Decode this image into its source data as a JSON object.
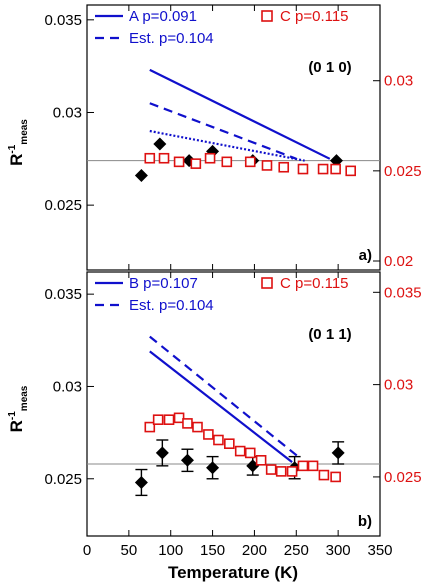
{
  "colors": {
    "blue": "#1010cc",
    "red": "#dd1111",
    "black": "#000000",
    "ref_line": "#888888"
  },
  "xaxis": {
    "label": "Temperature (K)",
    "ticks": [
      "0",
      "50",
      "100",
      "150",
      "200",
      "250",
      "300",
      "350"
    ],
    "tick_values": [
      0,
      50,
      100,
      150,
      200,
      250,
      300,
      350
    ],
    "range": [
      0,
      350
    ]
  },
  "chart_data": [
    {
      "type": "scatter",
      "panel_label": "a)",
      "orientation": "(0 1 0)",
      "ylabel": "R",
      "ylabel_sup": "-1",
      "ylabel_sub": "meas",
      "left_axis": {
        "range": [
          0.0215,
          0.0358
        ],
        "ticks": [
          {
            "value": 0.035,
            "label": "0.035"
          },
          {
            "value": 0.03,
            "label": "0.03"
          },
          {
            "value": 0.025,
            "label": "0.025"
          }
        ]
      },
      "right_axis": {
        "range": [
          0.0195,
          0.0342
        ],
        "ticks": [
          {
            "value": 0.03,
            "label": "0.03"
          },
          {
            "value": 0.025,
            "label": "0.025"
          },
          {
            "value": 0.02,
            "label": "0.02"
          }
        ]
      },
      "legend": [
        {
          "label": "A p=0.091",
          "style": "solid",
          "color": "blue"
        },
        {
          "label": "Est. p=0.104",
          "style": "dashed",
          "color": "blue"
        },
        {
          "label": "C p=0.115",
          "style": "open-square",
          "color": "red"
        }
      ],
      "reference_line": 0.0274,
      "series": [
        {
          "name": "A p=0.091",
          "axis": "left",
          "marker": "filled-diamond",
          "color": "black",
          "x": [
            65,
            87,
            122,
            150,
            198,
            298
          ],
          "y": [
            0.0266,
            0.0283,
            0.0274,
            0.0279,
            0.0274,
            0.0274
          ]
        },
        {
          "name": "C p=0.115",
          "axis": "right",
          "marker": "open-square",
          "color": "red",
          "x": [
            75,
            92,
            110,
            130,
            147,
            167,
            195,
            215,
            235,
            258,
            282,
            297,
            315
          ],
          "y": [
            0.0257,
            0.0257,
            0.0255,
            0.0254,
            0.0257,
            0.0255,
            0.0255,
            0.0253,
            0.0252,
            0.0251,
            0.0251,
            0.0251,
            0.025
          ]
        },
        {
          "name": "A p=0.091",
          "kind": "line",
          "style": "solid",
          "axis": "left",
          "x": [
            75,
            290
          ],
          "y": [
            0.0323,
            0.0275
          ]
        },
        {
          "name": "Est. p=0.104",
          "kind": "line",
          "style": "dashed",
          "axis": "left",
          "x": [
            75,
            250
          ],
          "y": [
            0.0305,
            0.0275
          ]
        },
        {
          "kind": "line",
          "style": "dotted",
          "axis": "left",
          "x": [
            75,
            260
          ],
          "y": [
            0.029,
            0.0274
          ]
        }
      ]
    },
    {
      "type": "scatter",
      "panel_label": "b)",
      "orientation": "(0 1 1)",
      "ylabel": "R",
      "ylabel_sup": "-1",
      "ylabel_sub": "meas",
      "left_axis": {
        "range": [
          0.0219,
          0.0362
        ],
        "ticks": [
          {
            "value": 0.035,
            "label": "0.035"
          },
          {
            "value": 0.03,
            "label": "0.03"
          },
          {
            "value": 0.025,
            "label": "0.025"
          }
        ]
      },
      "right_axis": {
        "range": [
          0.0218,
          0.0361
        ],
        "ticks": [
          {
            "value": 0.035,
            "label": "0.035"
          },
          {
            "value": 0.03,
            "label": "0.03"
          },
          {
            "value": 0.025,
            "label": "0.025"
          }
        ]
      },
      "legend": [
        {
          "label": "B p=0.107",
          "style": "solid",
          "color": "blue"
        },
        {
          "label": "Est. p=0.104",
          "style": "dashed",
          "color": "blue"
        },
        {
          "label": "C p=0.115",
          "style": "open-square",
          "color": "red"
        }
      ],
      "reference_line": 0.0258,
      "series": [
        {
          "name": "B p=0.107",
          "axis": "left",
          "marker": "filled-diamond",
          "color": "black",
          "errorbars": true,
          "x": [
            65,
            90,
            120,
            150,
            198,
            248,
            300
          ],
          "y": [
            0.0248,
            0.0264,
            0.026,
            0.0256,
            0.0257,
            0.0256,
            0.0264
          ],
          "err": [
            0.0007,
            0.0007,
            0.0006,
            0.0006,
            0.0005,
            0.0006,
            0.0006
          ]
        },
        {
          "name": "C p=0.115",
          "axis": "right",
          "marker": "open-square",
          "color": "red",
          "x": [
            75,
            85,
            98,
            110,
            120,
            132,
            145,
            157,
            170,
            183,
            195,
            208,
            220,
            232,
            245,
            258,
            270,
            283,
            297
          ],
          "y": [
            0.0277,
            0.0281,
            0.0281,
            0.0282,
            0.0279,
            0.0277,
            0.0273,
            0.027,
            0.0268,
            0.0264,
            0.0263,
            0.0259,
            0.0254,
            0.0253,
            0.0253,
            0.0256,
            0.0256,
            0.0251,
            0.025
          ]
        },
        {
          "name": "B p=0.107",
          "kind": "line",
          "style": "solid",
          "axis": "left",
          "x": [
            75,
            245
          ],
          "y": [
            0.0319,
            0.0259
          ]
        },
        {
          "name": "Est. p=0.104",
          "kind": "line",
          "style": "dashed",
          "axis": "left",
          "x": [
            75,
            255
          ],
          "y": [
            0.0327,
            0.0261
          ]
        }
      ]
    }
  ]
}
